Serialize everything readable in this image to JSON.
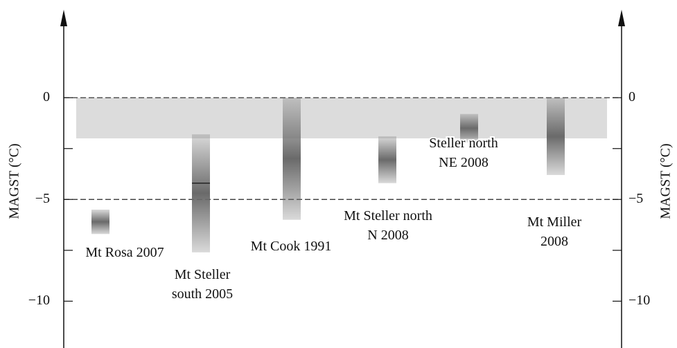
{
  "chart_data": {
    "type": "range-bar",
    "ylabel": "MAGST (°C)",
    "y2label": "MAGST (°C)",
    "categories": [
      "Mt Rosa 2007",
      "Mt Steller\nsouth 2005",
      "Mt Cook 1991",
      "Mt Steller north\nN 2008",
      "Steller north\nNE 2008",
      "Mt Miller\n2008"
    ],
    "high": [
      -5.5,
      -1.8,
      0,
      -1.9,
      -0.8,
      0
    ],
    "low": [
      -6.7,
      -7.6,
      -6.0,
      -4.2,
      -2.2,
      -3.8
    ],
    "markers": [
      null,
      -4.2,
      null,
      null,
      null,
      null
    ],
    "color": "#6a6a6a",
    "band": [
      0,
      -2
    ],
    "band_color": "#dcdcdc",
    "dashed_lines": [
      0,
      -5
    ],
    "ylim": [
      -12.3,
      4.8
    ],
    "yticks": [
      {
        "value": 0,
        "label": "0"
      },
      {
        "value": -5,
        "label": "−5"
      },
      {
        "value": -10,
        "label": "−10"
      }
    ],
    "minor_yticks": [
      -2.5,
      -7.5
    ],
    "y2lim": [
      -12.3,
      4.8
    ],
    "y2ticks": [
      {
        "value": 0,
        "label": "0"
      },
      {
        "value": -5,
        "label": "−5"
      },
      {
        "value": -10,
        "label": "−10"
      }
    ],
    "minor_y2ticks": [
      -2.5,
      -7.5
    ]
  }
}
